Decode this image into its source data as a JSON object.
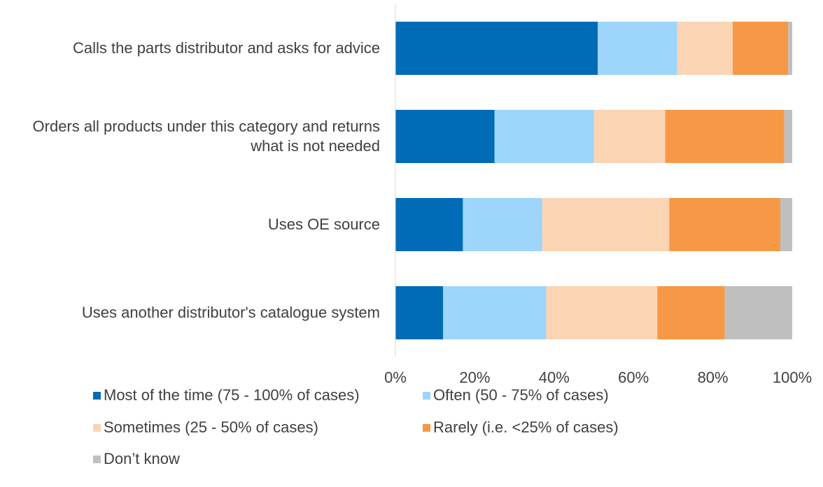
{
  "chart_data": {
    "type": "bar",
    "orientation": "horizontal",
    "stacked": true,
    "categories": [
      "Calls the parts distributor and asks for advice",
      "Orders all products under this category and returns what is not needed",
      "Uses OE source",
      "Uses another distributor's catalogue system"
    ],
    "series": [
      {
        "name": "Most of the time (75 - 100% of cases)",
        "color": "#006bb6",
        "values": [
          51,
          25,
          17,
          12
        ]
      },
      {
        "name": "Often (50 - 75% of cases)",
        "color": "#9dd5fb",
        "values": [
          20,
          25,
          20,
          26
        ]
      },
      {
        "name": "Sometimes (25 - 50% of cases)",
        "color": "#fbd4b4",
        "values": [
          14,
          18,
          32,
          28
        ]
      },
      {
        "name": "Rarely (i.e. <25% of cases)",
        "color": "#f79846",
        "values": [
          14,
          30,
          28,
          17
        ]
      },
      {
        "name": "Don’t know",
        "color": "#bfbfbf",
        "values": [
          1,
          2,
          3,
          17
        ]
      }
    ],
    "xlim": [
      0,
      100
    ],
    "xticks": [
      {
        "value": 0,
        "label": "0%"
      },
      {
        "value": 20,
        "label": "20%"
      },
      {
        "value": 40,
        "label": "40%"
      },
      {
        "value": 60,
        "label": "60%"
      },
      {
        "value": 80,
        "label": "80%"
      },
      {
        "value": 100,
        "label": "100%"
      }
    ],
    "grid": false,
    "legend": "bottom"
  }
}
